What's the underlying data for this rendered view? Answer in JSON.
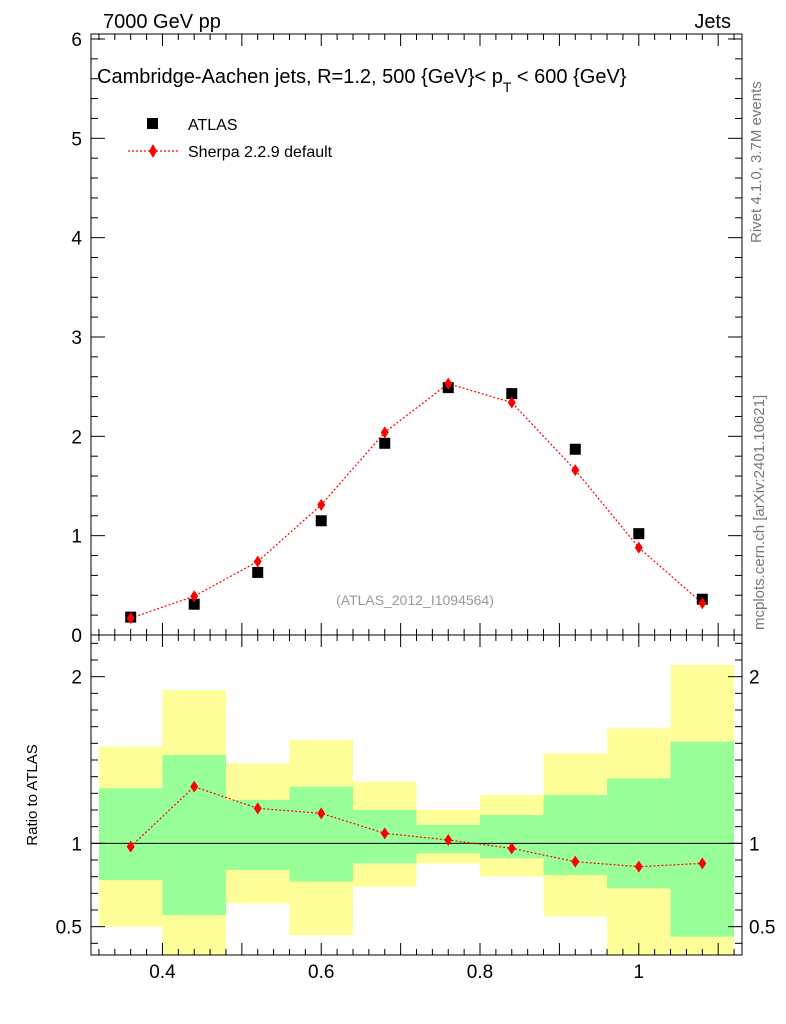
{
  "header": {
    "left": "7000 GeV pp",
    "right": "Jets"
  },
  "side_labels": {
    "rivet": "Rivet 4.1.0,  3.7M events",
    "mcplots": "mcplots.cern.ch [arXiv:2401.10621]"
  },
  "chart_data": {
    "type": "scatter",
    "title": "Cambridge-Aachen jets, R=1.2,  500 {GeV}< p_T < 600 {GeV}",
    "title_parts": {
      "pre": "Cambridge-Aachen jets, R=1.2,  500 {GeV}< p",
      "sub": "T",
      "post": " < 600 {GeV}"
    },
    "watermark": "(ATLAS_2012_I1094564)",
    "xlim": [
      0.31,
      1.13
    ],
    "main": {
      "ylim": [
        0,
        6.05
      ],
      "yticks": [
        0,
        1,
        2,
        3,
        4,
        5,
        6
      ],
      "ytick_labels": [
        "0",
        "1",
        "2",
        "3",
        "4",
        "5",
        "6"
      ]
    },
    "ratio": {
      "ylabel": "Ratio to ATLAS",
      "ylim": [
        0.33,
        2.25
      ],
      "yticks": [
        0.5,
        1,
        2
      ],
      "ytick_labels": [
        "0.5",
        "1",
        "2"
      ],
      "reference": 1
    },
    "xticks": [
      0.4,
      0.6,
      0.8,
      1.0
    ],
    "xtick_labels": [
      "0.4",
      "0.6",
      "0.8",
      "1"
    ],
    "bin_edges": [
      0.32,
      0.4,
      0.48,
      0.56,
      0.64,
      0.72,
      0.8,
      0.88,
      0.96,
      1.04,
      1.12
    ],
    "x": [
      0.36,
      0.44,
      0.52,
      0.6,
      0.68,
      0.76,
      0.84,
      0.92,
      1.0,
      1.08
    ],
    "legend": {
      "placement": "top-left",
      "entries": [
        "ATLAS",
        "Sherpa 2.2.9 default"
      ]
    },
    "series": [
      {
        "name": "ATLAS",
        "marker": "square",
        "color": "#000000",
        "values": [
          0.18,
          0.31,
          0.63,
          1.15,
          1.93,
          2.49,
          2.43,
          1.87,
          1.02,
          0.36
        ]
      },
      {
        "name": "Sherpa 2.2.9 default",
        "marker": "diamond",
        "color": "#ff0000",
        "line": "dotted",
        "values": [
          0.17,
          0.39,
          0.74,
          1.31,
          2.04,
          2.53,
          2.34,
          1.66,
          0.88,
          0.32
        ],
        "ratio": [
          0.98,
          1.34,
          1.21,
          1.18,
          1.06,
          1.02,
          0.97,
          0.89,
          0.86,
          0.88
        ]
      }
    ],
    "bands": {
      "inner_color": "#99ff99",
      "outer_color": "#ffff99",
      "inner": [
        [
          0.78,
          1.33
        ],
        [
          0.57,
          1.53
        ],
        [
          0.84,
          1.26
        ],
        [
          0.77,
          1.34
        ],
        [
          0.88,
          1.2
        ],
        [
          0.94,
          1.11
        ],
        [
          0.91,
          1.17
        ],
        [
          0.81,
          1.29
        ],
        [
          0.73,
          1.39
        ],
        [
          0.44,
          1.61
        ]
      ],
      "outer": [
        [
          0.5,
          1.58
        ],
        [
          0.33,
          1.92
        ],
        [
          0.64,
          1.48
        ],
        [
          0.45,
          1.62
        ],
        [
          0.74,
          1.37
        ],
        [
          0.88,
          1.2
        ],
        [
          0.8,
          1.29
        ],
        [
          0.56,
          1.54
        ],
        [
          0.33,
          1.69
        ],
        [
          0.33,
          2.07
        ]
      ]
    }
  }
}
